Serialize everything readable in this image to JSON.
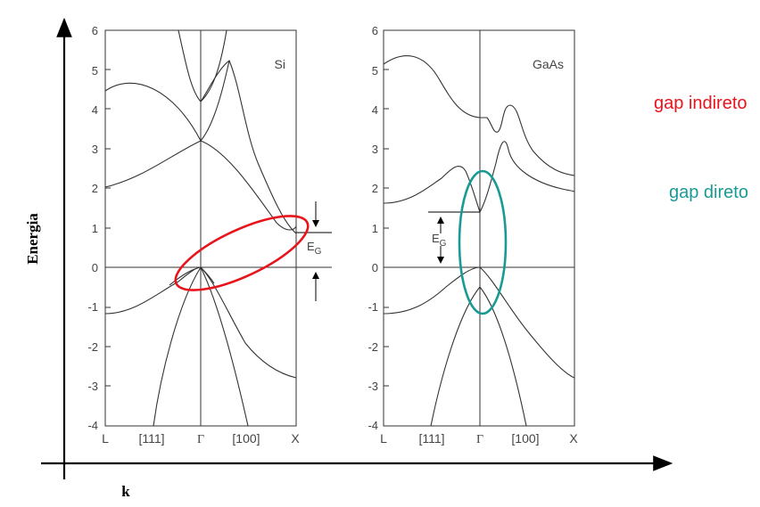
{
  "outer_axes": {
    "y_label": "Energia",
    "x_label": "k"
  },
  "panels": [
    {
      "material": "Si",
      "y_ticks": [
        "6",
        "5",
        "4",
        "3",
        "2",
        "1",
        "0",
        "-1",
        "-2",
        "-3",
        "-4"
      ],
      "x_ticks": [
        "L",
        "[111]",
        "Γ",
        "[100]",
        "X"
      ],
      "gap_label": "E",
      "gap_sub": "G"
    },
    {
      "material": "GaAs",
      "y_ticks": [
        "6",
        "5",
        "4",
        "3",
        "2",
        "1",
        "0",
        "-1",
        "-2",
        "-3",
        "-4"
      ],
      "x_ticks": [
        "L",
        "[111]",
        "Γ",
        "[100]",
        "X"
      ],
      "gap_label": "E",
      "gap_sub": "G"
    }
  ],
  "annotations": {
    "indirect": "gap indireto",
    "direct": "gap direto",
    "indirect_color": "#e8141c",
    "direct_color": "#1a9a96"
  }
}
